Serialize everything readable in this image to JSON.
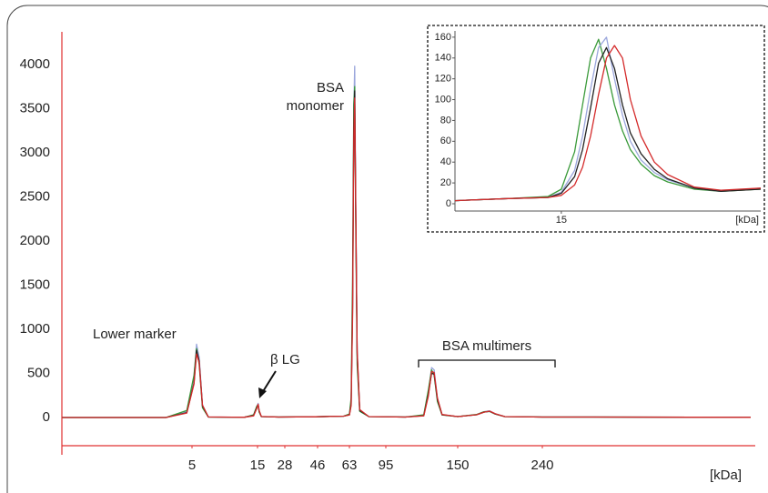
{
  "chart_data": [
    {
      "type": "line",
      "x_label": "[kDa]",
      "annotations": [
        "Lower marker",
        "β LG",
        "BSA",
        "monomer",
        "BSA multimers"
      ],
      "x": [
        0,
        4,
        4.8,
        5.3,
        5.7,
        6.1,
        6.6,
        7.5,
        13,
        14.4,
        14.9,
        15.3,
        15.8,
        16.8,
        25,
        45,
        60,
        63,
        64.5,
        65.8,
        66.8,
        67.6,
        68.5,
        69.8,
        72,
        80,
        110,
        124,
        127.5,
        130,
        132,
        134.5,
        138,
        150,
        170,
        178,
        184,
        190,
        200,
        240,
        300,
        480
      ],
      "xlim": [
        0,
        480
      ],
      "xticks": [
        5,
        15,
        28,
        46,
        63,
        95,
        150,
        240
      ],
      "ylim": [
        -320,
        4370
      ],
      "yticks": [
        0,
        500,
        1000,
        1500,
        2000,
        2500,
        3000,
        3500,
        4000
      ],
      "series": [
        {
          "color": "#9aa6dc",
          "values": [
            0,
            0,
            70,
            460,
            830,
            680,
            140,
            6,
            3,
            25,
            125,
            160,
            75,
            10,
            5,
            8,
            15,
            32,
            170,
            1350,
            3500,
            3980,
            2550,
            760,
            85,
            10,
            5,
            25,
            290,
            565,
            540,
            215,
            32,
            10,
            32,
            65,
            75,
            42,
            10,
            5,
            5,
            2
          ]
        },
        {
          "color": "#3a9a3a",
          "values": [
            0,
            0,
            80,
            480,
            780,
            600,
            110,
            5,
            3,
            30,
            130,
            140,
            60,
            10,
            5,
            8,
            15,
            40,
            220,
            1600,
            3550,
            3750,
            2200,
            600,
            70,
            10,
            5,
            30,
            310,
            540,
            480,
            180,
            28,
            10,
            34,
            66,
            68,
            38,
            10,
            5,
            5,
            2
          ]
        },
        {
          "color": "#222222",
          "values": [
            0,
            0,
            55,
            390,
            760,
            640,
            130,
            5,
            3,
            22,
            115,
            145,
            72,
            10,
            5,
            8,
            15,
            30,
            150,
            1250,
            3300,
            3700,
            2400,
            720,
            80,
            10,
            5,
            20,
            260,
            500,
            490,
            205,
            30,
            10,
            30,
            60,
            70,
            40,
            10,
            5,
            5,
            2
          ]
        },
        {
          "color": "#d42a2a",
          "values": [
            0,
            0,
            50,
            380,
            720,
            620,
            140,
            6,
            3,
            18,
            105,
            150,
            78,
            11,
            5,
            8,
            15,
            28,
            135,
            1150,
            3150,
            3620,
            2450,
            760,
            90,
            10,
            5,
            18,
            240,
            520,
            510,
            220,
            34,
            10,
            30,
            60,
            72,
            42,
            10,
            5,
            5,
            2
          ]
        }
      ]
    },
    {
      "type": "line",
      "x_label": "[kDa]",
      "x": [
        11,
        13,
        14.5,
        15,
        15.5,
        15.8,
        16.1,
        16.4,
        16.7,
        17,
        17.3,
        17.6,
        18,
        18.5,
        19,
        20,
        21,
        22.5
      ],
      "xlim": [
        11,
        22.5
      ],
      "xticks": [
        15
      ],
      "ylim": [
        -7,
        166
      ],
      "yticks": [
        0,
        20,
        40,
        60,
        80,
        100,
        120,
        140,
        160
      ],
      "series": [
        {
          "color": "#3a9a3a",
          "values": [
            3,
            5,
            7,
            14,
            50,
            95,
            140,
            158,
            130,
            95,
            70,
            52,
            38,
            27,
            21,
            14,
            12,
            14
          ]
        },
        {
          "color": "#9aa6dc",
          "values": [
            3,
            5,
            6,
            11,
            32,
            65,
            110,
            150,
            160,
            120,
            85,
            60,
            42,
            30,
            23,
            15,
            12,
            15
          ]
        },
        {
          "color": "#222222",
          "values": [
            3,
            5,
            6,
            10,
            26,
            52,
            92,
            135,
            150,
            130,
            95,
            68,
            48,
            33,
            24,
            15,
            12,
            14
          ]
        },
        {
          "color": "#d42a2a",
          "values": [
            3,
            5,
            6,
            8,
            18,
            35,
            65,
            105,
            140,
            152,
            140,
            100,
            65,
            40,
            28,
            16,
            13,
            15
          ]
        }
      ]
    }
  ]
}
